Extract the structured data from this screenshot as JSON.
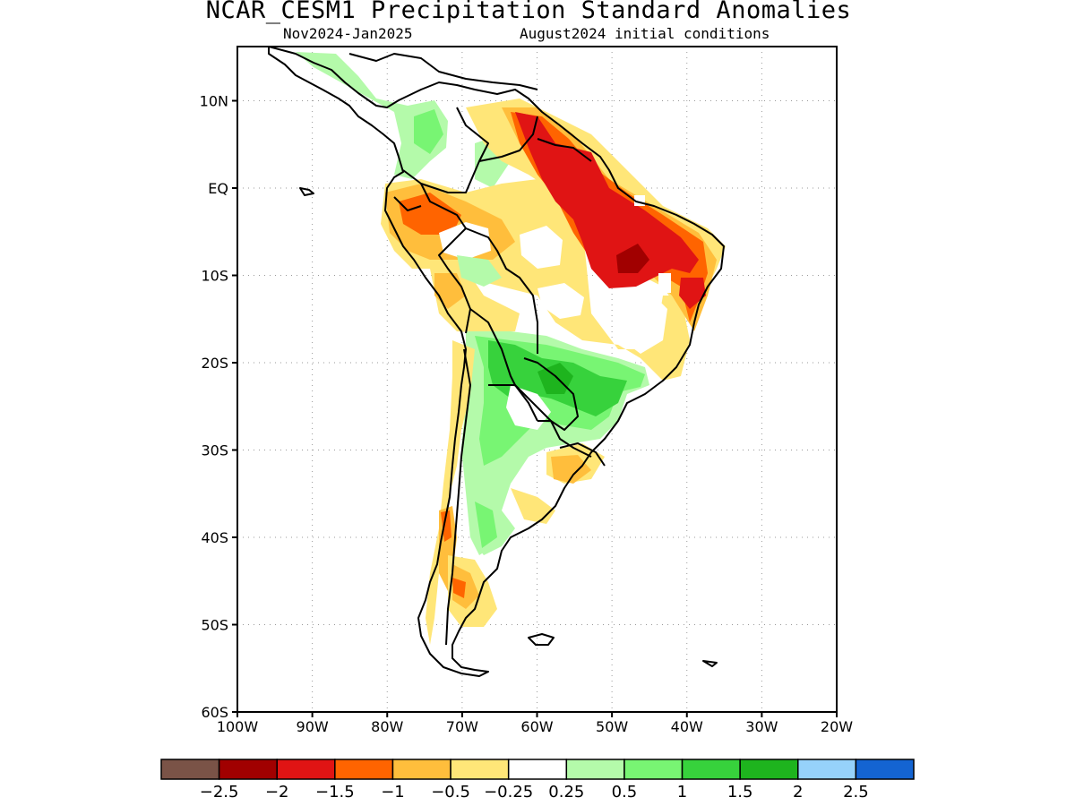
{
  "header": {
    "title": "NCAR_CESM1 Precipitation Standard Anomalies",
    "period": "Nov2024-Jan2025",
    "init": "August2024 initial conditions"
  },
  "map": {
    "region": "South America",
    "lon_range": [
      -100,
      -20
    ],
    "lat_range": [
      -60,
      15
    ],
    "lat_ticks": [
      {
        "label": "10N",
        "lat": 10
      },
      {
        "label": "EQ",
        "lat": 0
      },
      {
        "label": "10S",
        "lat": -10
      },
      {
        "label": "20S",
        "lat": -20
      },
      {
        "label": "30S",
        "lat": -30
      },
      {
        "label": "40S",
        "lat": -40
      },
      {
        "label": "50S",
        "lat": -50
      },
      {
        "label": "60S",
        "lat": -60
      }
    ],
    "lon_ticks": [
      {
        "label": "100W",
        "lon": -100
      },
      {
        "label": "90W",
        "lon": -90
      },
      {
        "label": "80W",
        "lon": -80
      },
      {
        "label": "70W",
        "lon": -70
      },
      {
        "label": "60W",
        "lon": -60
      },
      {
        "label": "50W",
        "lon": -50
      },
      {
        "label": "40W",
        "lon": -40
      },
      {
        "label": "30W",
        "lon": -30
      },
      {
        "label": "20W",
        "lon": -20
      }
    ],
    "grid": true
  },
  "legend": {
    "colors": [
      "#7a5347",
      "#a10000",
      "#e01414",
      "#ff6400",
      "#ffbe3c",
      "#ffe678",
      "#ffffff",
      "#b4faaa",
      "#78f573",
      "#37d23c",
      "#1eb41e",
      "#96d2fa",
      "#1464d2"
    ],
    "labels": [
      "-2.5",
      "-2",
      "-1.5",
      "-1",
      "-0.5",
      "-0.25",
      "0.25",
      "0.5",
      "1",
      "1.5",
      "2",
      "2.5"
    ]
  }
}
